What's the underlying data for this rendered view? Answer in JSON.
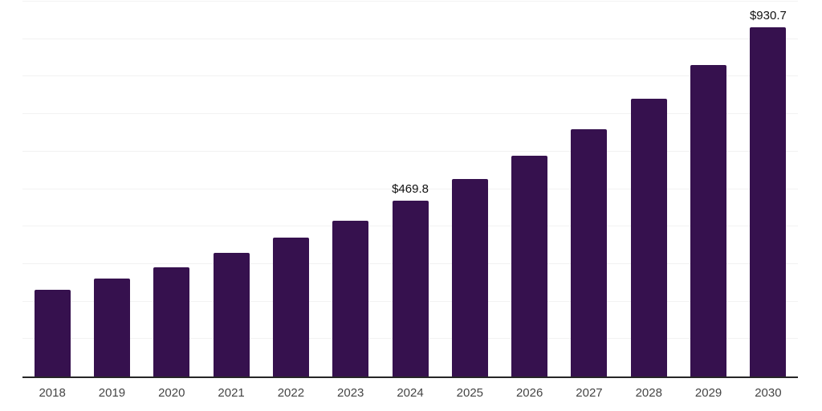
{
  "chart_data": {
    "type": "bar",
    "title": "",
    "xlabel": "",
    "ylabel": "",
    "categories": [
      "2018",
      "2019",
      "2020",
      "2021",
      "2022",
      "2023",
      "2024",
      "2025",
      "2026",
      "2027",
      "2028",
      "2029",
      "2030"
    ],
    "values": [
      231.2,
      261.1,
      291.6,
      329.8,
      371.3,
      416.1,
      469.8,
      526.1,
      588.7,
      659.7,
      741.3,
      830.2,
      930.7
    ],
    "value_labels": {
      "2024": "$469.8",
      "2030": "$930.7"
    },
    "unit_prefix": "$",
    "ylim": [
      0,
      1000
    ],
    "gridline_step": 100,
    "grid": true,
    "legend": false,
    "colors": {
      "bar": "#36114E",
      "axis_line": "#262626",
      "gridline": "#f2f2f2",
      "tick_label": "#454545",
      "value_label": "#111111",
      "background": "#ffffff"
    }
  }
}
